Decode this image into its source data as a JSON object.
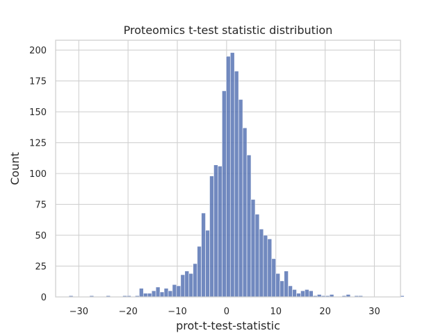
{
  "chart_data": {
    "type": "bar",
    "title": "Proteomics t-test statistic distribution",
    "xlabel": "prot-t-test-statistic",
    "ylabel": "Count",
    "xlim": [
      -34.7,
      35.3
    ],
    "ylim": [
      0,
      208
    ],
    "xticks": [
      -30,
      -20,
      -10,
      0,
      10,
      20,
      30
    ],
    "xtick_labels": [
      "−30",
      "−20",
      "−10",
      "0",
      "10",
      "20",
      "30"
    ],
    "yticks": [
      0,
      25,
      50,
      75,
      100,
      125,
      150,
      175,
      200
    ],
    "ytick_labels": [
      "0",
      "25",
      "50",
      "75",
      "100",
      "125",
      "150",
      "175",
      "200"
    ],
    "grid": true,
    "bin_start": -32.0,
    "bin_width": 0.84,
    "values": [
      1,
      0,
      0,
      0,
      0,
      1,
      0,
      0,
      0,
      1,
      0,
      0,
      0,
      1,
      1,
      0,
      1,
      7,
      3,
      3,
      5,
      8,
      4,
      7,
      5,
      10,
      9,
      18,
      21,
      19,
      27,
      41,
      68,
      54,
      98,
      107,
      106,
      167,
      195,
      198,
      183,
      160,
      137,
      115,
      79,
      67,
      55,
      50,
      47,
      31,
      19,
      13,
      21,
      9,
      6,
      3,
      5,
      6,
      5,
      1,
      2,
      1,
      1,
      2,
      0,
      0,
      1,
      2,
      0,
      1,
      1,
      0,
      0,
      0,
      0,
      0,
      0,
      0,
      0,
      0,
      1
    ],
    "bar_color": "#5874b4",
    "grid_color": "#d0d0d0",
    "background_color": "#ffffff"
  }
}
